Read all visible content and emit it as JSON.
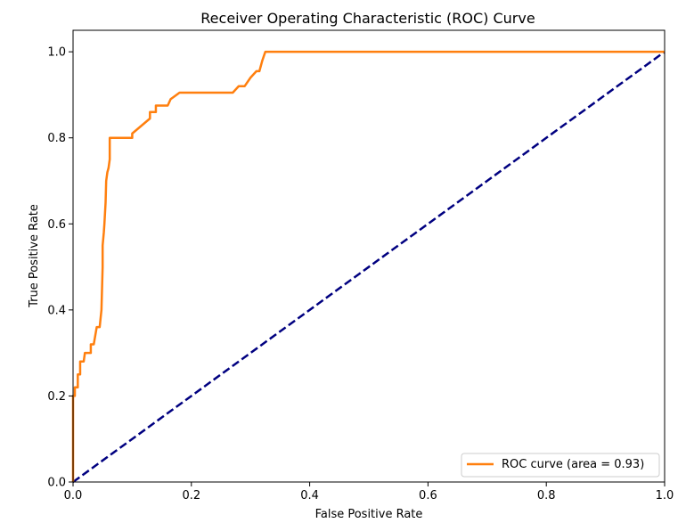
{
  "chart_data": {
    "type": "line",
    "title": "Receiver Operating Characteristic (ROC) Curve",
    "xlabel": "False Positive Rate",
    "ylabel": "True Positive Rate",
    "xlim": [
      0.0,
      1.0
    ],
    "ylim": [
      0.0,
      1.05
    ],
    "xticks": [
      "0.0",
      "0.2",
      "0.4",
      "0.6",
      "0.8",
      "1.0"
    ],
    "yticks": [
      "0.0",
      "0.2",
      "0.4",
      "0.6",
      "0.8",
      "1.0"
    ],
    "xtick_values": [
      0.0,
      0.2,
      0.4,
      0.6,
      0.8,
      1.0
    ],
    "ytick_values": [
      0.0,
      0.2,
      0.4,
      0.6,
      0.8,
      1.0
    ],
    "grid": false,
    "legend_position": "lower-right",
    "series": [
      {
        "name": "ROC curve (area = 0.93)",
        "color": "#ff7f0e",
        "style": "solid",
        "x": [
          0.0,
          0.0,
          0.003,
          0.003,
          0.008,
          0.008,
          0.012,
          0.012,
          0.018,
          0.02,
          0.025,
          0.03,
          0.03,
          0.035,
          0.04,
          0.042,
          0.045,
          0.048,
          0.05,
          0.05,
          0.052,
          0.053,
          0.055,
          0.056,
          0.058,
          0.06,
          0.062,
          0.062,
          0.1,
          0.1,
          0.13,
          0.13,
          0.14,
          0.14,
          0.16,
          0.165,
          0.17,
          0.18,
          0.27,
          0.28,
          0.29,
          0.3,
          0.31,
          0.315,
          0.32,
          0.325,
          1.0
        ],
        "y": [
          0.0,
          0.2,
          0.2,
          0.22,
          0.22,
          0.25,
          0.25,
          0.28,
          0.28,
          0.3,
          0.3,
          0.3,
          0.32,
          0.32,
          0.36,
          0.36,
          0.36,
          0.4,
          0.5,
          0.55,
          0.58,
          0.6,
          0.65,
          0.7,
          0.72,
          0.73,
          0.75,
          0.8,
          0.8,
          0.81,
          0.845,
          0.86,
          0.86,
          0.875,
          0.875,
          0.89,
          0.895,
          0.905,
          0.905,
          0.92,
          0.92,
          0.94,
          0.955,
          0.955,
          0.98,
          1.0,
          1.0
        ]
      },
      {
        "name": "",
        "color": "#000080",
        "style": "dashed",
        "x": [
          0.0,
          1.0
        ],
        "y": [
          0.0,
          1.0
        ]
      }
    ]
  }
}
